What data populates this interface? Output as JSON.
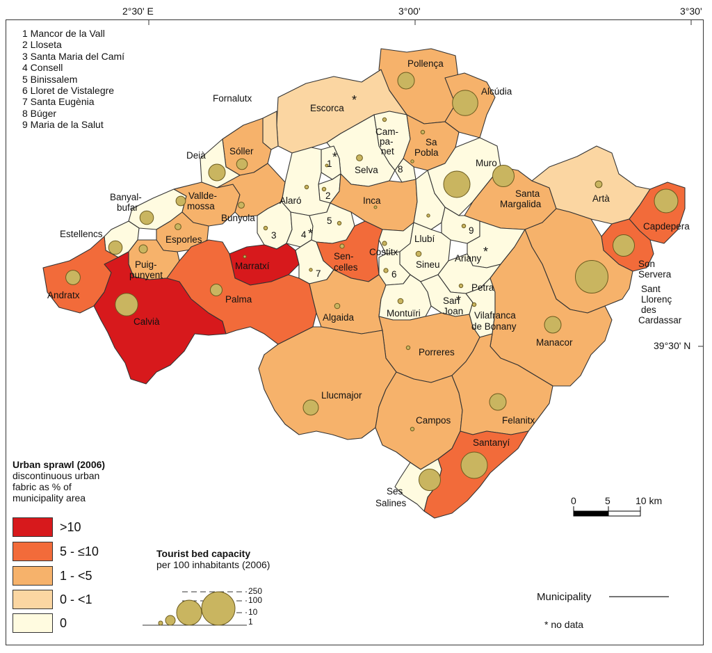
{
  "axes": {
    "lon_ticks": [
      "2°30' E",
      "3°00'",
      "3°30'"
    ],
    "lat_tick": "39°30' N"
  },
  "numbered_key": [
    "1 Mancor de la Vall",
    "2 Lloseta",
    "3 Santa Maria del Camí",
    "4 Consell",
    "5 Binissalem",
    "6 Lloret de Vistalegre",
    "7 Santa Eugènia",
    "8 Búger",
    "9 Maria de la Salut"
  ],
  "colors": {
    "class_gt10": "#d7191c",
    "class_5_10": "#f26b3a",
    "class_1_5": "#f6b26b",
    "class_0_1": "#fbd6a2",
    "class_0": "#fffbe0",
    "bubble": "#c9b560",
    "border": "#333333"
  },
  "municipalities": [
    {
      "name": "Pollença",
      "class": "1-5",
      "beds": 60
    },
    {
      "name": "Alcúdia",
      "class": "1-5",
      "beds": 140
    },
    {
      "name": "Fornalutx",
      "class": "0-1",
      "beds": null
    },
    {
      "name": "Escorca",
      "class": "0-1",
      "beds": null
    },
    {
      "name": "Sóller",
      "class": "1-5",
      "beds": 25
    },
    {
      "name": "Deià",
      "class": "0",
      "beds": 60
    },
    {
      "name": "Campanet",
      "class": "0",
      "beds": 3
    },
    {
      "name": "Sa Pobla",
      "class": "1-5",
      "beds": 3
    },
    {
      "name": "Selva",
      "class": "0",
      "beds": 8
    },
    {
      "name": "Muro",
      "class": "0",
      "beds": 150
    },
    {
      "name": "Banyalbufar",
      "class": "0",
      "beds": 40
    },
    {
      "name": "Valldemossa",
      "class": "1-5",
      "beds": 20
    },
    {
      "name": "Alaró",
      "class": "0",
      "beds": 3
    },
    {
      "name": "Inca",
      "class": "1-5",
      "beds": 1
    },
    {
      "name": "Santa Margalida",
      "class": "1-5",
      "beds": 100
    },
    {
      "name": "Artà",
      "class": "0-1",
      "beds": 10
    },
    {
      "name": "Capdepera",
      "class": "5-10",
      "beds": 120
    },
    {
      "name": "Estellencs",
      "class": "0",
      "beds": 40
    },
    {
      "name": "Bunyola",
      "class": "1-5",
      "beds": 8
    },
    {
      "name": "Esporles",
      "class": "1-5",
      "beds": 8
    },
    {
      "name": "Llubí",
      "class": "0",
      "beds": 2
    },
    {
      "name": "Sencelles",
      "class": "5-10",
      "beds": 4
    },
    {
      "name": "Costitx",
      "class": "0",
      "beds": 4
    },
    {
      "name": "Sineu",
      "class": "0",
      "beds": 6
    },
    {
      "name": "Ariany",
      "class": "0",
      "beds": null
    },
    {
      "name": "Son Servera",
      "class": "5-10",
      "beds": 100
    },
    {
      "name": "Andratx",
      "class": "5-10",
      "beds": 45
    },
    {
      "name": "Puigpunyent",
      "class": "1-5",
      "beds": 15
    },
    {
      "name": "Marratxí",
      "class": ">10",
      "beds": 1
    },
    {
      "name": "Palma",
      "class": "5-10",
      "beds": 30
    },
    {
      "name": "Calvià",
      "class": ">10",
      "beds": 110
    },
    {
      "name": "Algaida",
      "class": "1-5",
      "beds": 6
    },
    {
      "name": "Montuïri",
      "class": "0",
      "beds": 6
    },
    {
      "name": "Petra",
      "class": "0",
      "beds": 3
    },
    {
      "name": "San Joan",
      "class": "0",
      "beds": null
    },
    {
      "name": "Vilafranca de Bonany",
      "class": "0",
      "beds": 3
    },
    {
      "name": "Sant Llorenç des Cardassar",
      "class": "1-5",
      "beds": 230
    },
    {
      "name": "Manacor",
      "class": "1-5",
      "beds": 60
    },
    {
      "name": "Porreres",
      "class": "1-5",
      "beds": 3
    },
    {
      "name": "Llucmajor",
      "class": "1-5",
      "beds": 50
    },
    {
      "name": "Felanitx",
      "class": "1-5",
      "beds": 60
    },
    {
      "name": "Campos",
      "class": "1-5",
      "beds": 3
    },
    {
      "name": "Santanyí",
      "class": "5-10",
      "beds": 150
    },
    {
      "name": "Ses Salines",
      "class": "0",
      "beds": 100
    }
  ],
  "labels": {
    "Pollença": "Pollença",
    "Alcúdia": "Alcúdia",
    "Fornalutx": "Fornalutx",
    "Escorca": "Escorca",
    "Sóller": "Sóller",
    "Deià": "Deià",
    "Campanet_1": "Cam-",
    "Campanet_2": "pa-",
    "Campanet_3": "net",
    "SaPobla_1": "Sa",
    "SaPobla_2": "Pobla",
    "Selva": "Selva",
    "Muro": "Muro",
    "Banyalbufar_1": "Banyal-",
    "Banyalbufar_2": "bufar",
    "Valldemossa_1": "Vallde-",
    "Valldemossa_2": "mossa",
    "Alaró": "Alaró",
    "Inca": "Inca",
    "SantaMargalida_1": "Santa",
    "SantaMargalida_2": "Margalida",
    "Artà": "Artà",
    "Capdepera": "Capdepera",
    "Estellencs": "Estellencs",
    "Bunyola": "Bunyola",
    "Esporles": "Esporles",
    "Llubí": "Llubí",
    "Sencelles_1": "Sen-",
    "Sencelles_2": "celles",
    "Costitx": "Costitx",
    "Sineu": "Sineu",
    "Ariany": "Ariany",
    "SonServera_1": "Son",
    "SonServera_2": "Servera",
    "Andratx": "Andratx",
    "Puigpunyent_1": "Puig-",
    "Puigpunyent_2": "punyent",
    "Marratxí": "Marratxí",
    "Palma": "Palma",
    "Calvià": "Calvià",
    "Algaida": "Algaida",
    "Montuïri": "Montuïri",
    "Petra": "Petra",
    "SanJoan_1": "San",
    "SanJoan_2": "Joan",
    "Vilafranca_1": "Vilafranca",
    "Vilafranca_2": "de Bonany",
    "SantLlorenc_1": "Sant",
    "SantLlorenc_2": "Llorenç",
    "SantLlorenc_3": "des",
    "SantLlorenc_4": "Cardassar",
    "Manacor": "Manacor",
    "Porreres": "Porreres",
    "Llucmajor": "Llucmajor",
    "Felanitx": "Felanitx",
    "Campos": "Campos",
    "Santanyí": "Santanyí",
    "SesSalines_1": "Ses",
    "SesSalines_2": "Salines",
    "n1": "1",
    "n2": "2",
    "n3": "3",
    "n4": "4",
    "n5": "5",
    "n6": "6",
    "n7": "7",
    "n8": "8",
    "n9": "9",
    "star": "*"
  },
  "sprawl_legend": {
    "title": "Urban sprawl (2006)",
    "subtitle_1": "discontinuous urban",
    "subtitle_2": "fabric as % of",
    "subtitle_3": "municipality area",
    "classes": [
      {
        "label": ">10",
        "color": "#d7191c"
      },
      {
        "label": "5 - ≤10",
        "color": "#f26b3a"
      },
      {
        "label": "1 - <5",
        "color": "#f6b26b"
      },
      {
        "label": "0 - <1",
        "color": "#fbd6a2"
      },
      {
        "label": "0",
        "color": "#fffbe0"
      }
    ]
  },
  "beds_legend": {
    "title": "Tourist bed capacity",
    "subtitle": "per 100 inhabitants (2006)",
    "values": [
      "250",
      "100",
      "10",
      "1"
    ]
  },
  "scalebar": {
    "labels": [
      "0",
      "5",
      "10 km"
    ]
  },
  "municipality_legend": "Municipality",
  "nodata_legend": "* no data"
}
